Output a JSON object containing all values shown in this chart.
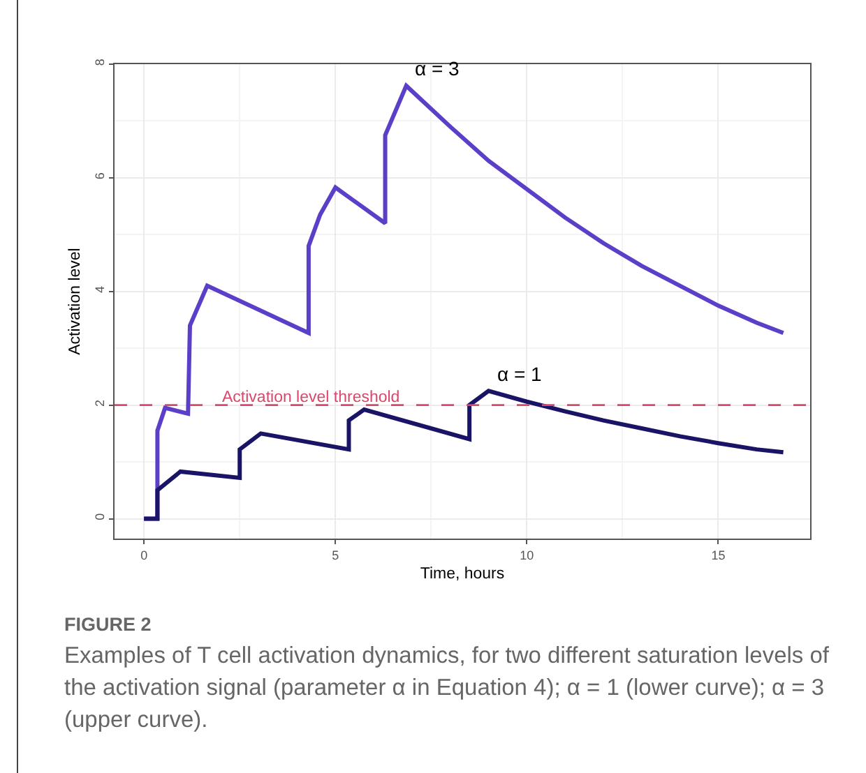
{
  "chart_data": {
    "type": "line",
    "title": "FIGURE 2",
    "subtitle": "Examples of T cell activation dynamics, for two different saturation levels of the activation signal (parameter α in Equation 4); α = 1 (lower curve); α = 3 (upper curve).",
    "xlabel": "Time, hours",
    "ylabel": "Activation level",
    "xlim": [
      -0.77,
      17.4
    ],
    "xticks": [
      0,
      5,
      10,
      15
    ],
    "ylim": [
      -0.35,
      8
    ],
    "yticks": [
      0,
      2,
      4,
      6,
      8
    ],
    "grid": true,
    "legend": false,
    "marker": "none",
    "line_style": "solid",
    "series": [
      {
        "name": "α = 3",
        "color": "#5b3fc8",
        "x": [
          0,
          0.35,
          0.35,
          0.55,
          1.15,
          1.2,
          1.65,
          4.3,
          4.3,
          4.6,
          5.0,
          6.3,
          6.3,
          6.85,
          8,
          9,
          10,
          11,
          12,
          13,
          14,
          15,
          16,
          16.7
        ],
        "values": [
          0,
          0,
          1.55,
          1.95,
          1.85,
          3.4,
          4.1,
          3.27,
          4.8,
          5.35,
          5.83,
          5.2,
          6.75,
          7.62,
          6.9,
          6.3,
          5.8,
          5.3,
          4.85,
          4.45,
          4.1,
          3.75,
          3.45,
          3.27
        ]
      },
      {
        "name": "α = 1",
        "color": "#1a1466",
        "x": [
          0,
          0.35,
          0.35,
          0.95,
          2.5,
          2.5,
          3.05,
          5.35,
          5.35,
          5.75,
          8.5,
          8.5,
          9.0,
          10,
          11,
          12,
          13,
          14,
          15,
          16,
          16.7
        ],
        "values": [
          0,
          0,
          0.5,
          0.83,
          0.72,
          1.22,
          1.5,
          1.22,
          1.73,
          1.92,
          1.4,
          2.0,
          2.25,
          2.06,
          1.89,
          1.73,
          1.59,
          1.45,
          1.33,
          1.22,
          1.17
        ]
      }
    ],
    "ref_lines": [
      {
        "axis": "y",
        "value": 2,
        "label": "Activation level threshold",
        "color": "#d9476a",
        "line_style": "dashed"
      }
    ]
  }
}
